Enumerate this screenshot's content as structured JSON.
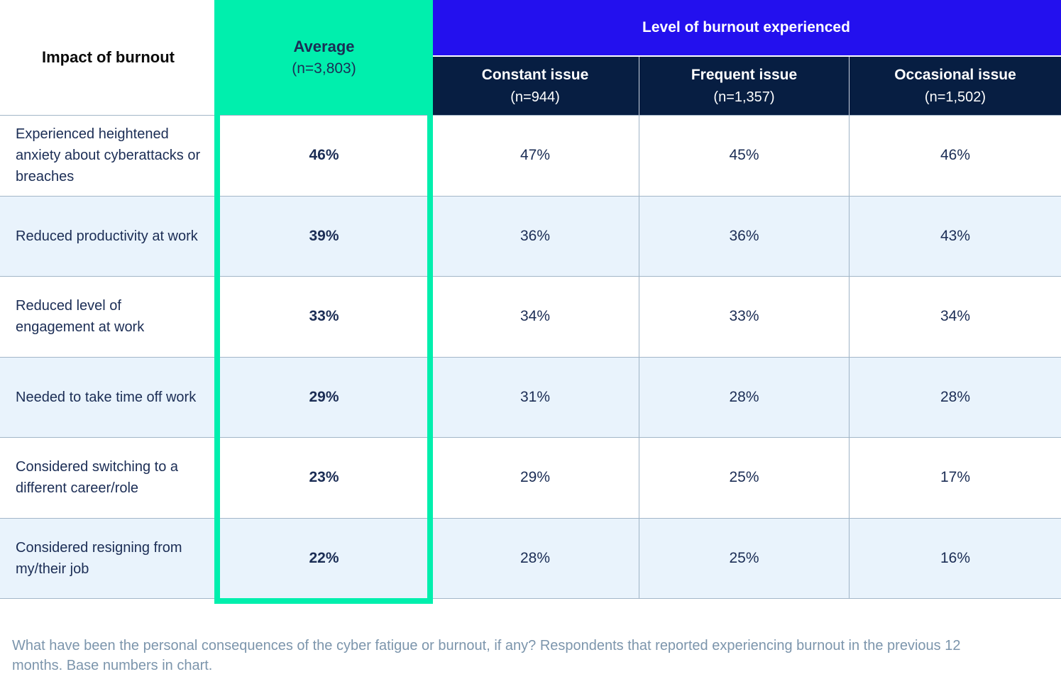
{
  "header": {
    "row_dimension_label": "Impact of burnout",
    "average_column": {
      "title": "Average",
      "base": "(n=3,803)"
    },
    "group_label": "Level of burnout experienced",
    "sub_columns": [
      {
        "title": "Constant issue",
        "base": "(n=944)"
      },
      {
        "title": "Frequent issue",
        "base": "(n=1,357)"
      },
      {
        "title": "Occasional issue",
        "base": "(n=1,502)"
      }
    ]
  },
  "rows": [
    {
      "label": "Experienced heightened anxiety about cyberattacks or breaches",
      "average": "46%",
      "values": [
        "47%",
        "45%",
        "46%"
      ]
    },
    {
      "label": "Reduced productivity at work",
      "average": "39%",
      "values": [
        "36%",
        "36%",
        "43%"
      ]
    },
    {
      "label": "Reduced level of engagement at work",
      "average": "33%",
      "values": [
        "34%",
        "33%",
        "34%"
      ]
    },
    {
      "label": "Needed to take time off work",
      "average": "29%",
      "values": [
        "31%",
        "28%",
        "28%"
      ]
    },
    {
      "label": "Considered switching to a different career/role",
      "average": "23%",
      "values": [
        "29%",
        "25%",
        "17%"
      ]
    },
    {
      "label": "Considered resigning from my/their job",
      "average": "22%",
      "values": [
        "28%",
        "25%",
        "16%"
      ]
    }
  ],
  "footnote": "What have been the personal consequences of the cyber fatigue or burnout, if any? Respondents that reported experiencing burnout in the previous 12 months. Base numbers in chart.",
  "colors": {
    "highlight_teal": "#00EFAD",
    "header_blue": "#2310EE",
    "header_navy": "#071E42",
    "row_alt_blue": "#E9F3FC",
    "text_navy": "#1B2D55",
    "footnote_gray_blue": "#7C95AC"
  },
  "chart_data": {
    "type": "table",
    "title": "Impact of burnout",
    "column_group_header": "Level of burnout experienced",
    "columns": [
      "Average (n=3,803)",
      "Constant issue (n=944)",
      "Frequent issue (n=1,357)",
      "Occasional issue (n=1,502)"
    ],
    "row_labels": [
      "Experienced heightened anxiety about cyberattacks or breaches",
      "Reduced productivity at work",
      "Reduced level of engagement at work",
      "Needed to take time off work",
      "Considered switching to a different career/role",
      "Considered resigning from my/their job"
    ],
    "values_percent": [
      [
        46,
        47,
        45,
        46
      ],
      [
        39,
        36,
        36,
        43
      ],
      [
        33,
        34,
        33,
        34
      ],
      [
        29,
        31,
        28,
        28
      ],
      [
        23,
        29,
        25,
        17
      ],
      [
        22,
        28,
        25,
        16
      ]
    ],
    "highlighted_column": "Average (n=3,803)",
    "footnote": "What have been the personal consequences of the cyber fatigue or burnout, if any? Respondents that reported experiencing burnout in the previous 12 months. Base numbers in chart."
  }
}
